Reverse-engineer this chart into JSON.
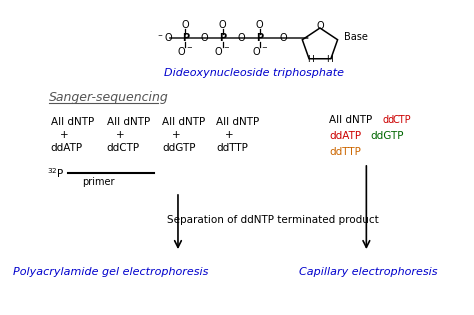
{
  "title_top": "Dideoxynucleoside triphosphate",
  "title_top_color": "#0000cc",
  "sanger_title": "Sanger-sequencing",
  "sanger_color": "#555555",
  "bg_color": "#ffffff",
  "color_ddCTP": "#cc0000",
  "color_ddATP": "#cc0000",
  "color_ddGTP": "#006600",
  "color_ddTTP": "#cc6600",
  "color_black": "#000000",
  "color_blue": "#0000cc",
  "sep_text": "Separation of ddNTP terminated product",
  "bottom_left": "Polyacrylamide gel electrophoresis",
  "bottom_right": "Capillary electrophoresis",
  "primer_label": "primer",
  "figsize": [
    4.74,
    3.15
  ],
  "dpi": 100
}
